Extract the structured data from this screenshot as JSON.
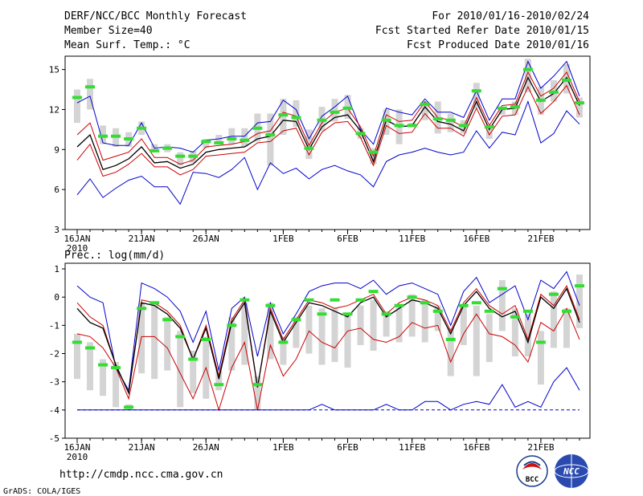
{
  "header": {
    "title": "DERF/NCC/BCC Monthly Forecast",
    "member_size": "Member Size=40",
    "variable": "Mean Surf. Temp.: °C",
    "period": "For 2010/01/16-2010/02/24",
    "fcst_started": "Fcst Started Refer Date 2010/01/15",
    "fcst_produced": "Fcst Produced Date 2010/01/16"
  },
  "footer": {
    "url": "http://cmdp.ncc.cma.gov.cn",
    "credit": "GrADS: COLA/IGES",
    "logo_bcc": "BCC",
    "logo_ncc": "NCC"
  },
  "colors": {
    "bound": "#0000cc",
    "mean": "#000000",
    "spread": "#cc0000",
    "box": "#d4d4d4",
    "obs": "#33dd33"
  },
  "chart_data": [
    {
      "type": "line",
      "title": "Mean Surf. Temp.: °C",
      "ylabel": "°C",
      "ylim": [
        3,
        16
      ],
      "yticks": [
        3,
        6,
        9,
        12,
        15
      ],
      "xticks": [
        {
          "day": 0,
          "label": "16JAN",
          "sublabel": "2010"
        },
        {
          "day": 5,
          "label": "21JAN"
        },
        {
          "day": 10,
          "label": "26JAN"
        },
        {
          "day": 16,
          "label": "1FEB"
        },
        {
          "day": 21,
          "label": "6FEB"
        },
        {
          "day": 26,
          "label": "11FEB"
        },
        {
          "day": 31,
          "label": "16FEB"
        },
        {
          "day": 36,
          "label": "21FEB"
        }
      ],
      "days": [
        0,
        1,
        2,
        3,
        4,
        5,
        6,
        7,
        8,
        9,
        10,
        11,
        12,
        13,
        14,
        15,
        16,
        17,
        18,
        19,
        20,
        21,
        22,
        23,
        24,
        25,
        26,
        27,
        28,
        29,
        30,
        31,
        32,
        33,
        34,
        35,
        36,
        37,
        38,
        39
      ],
      "series": [
        {
          "name": "max",
          "values": [
            12.5,
            13.0,
            9.5,
            9.3,
            9.3,
            11.0,
            9.1,
            9.2,
            9.1,
            8.8,
            9.7,
            9.8,
            10.0,
            10.0,
            11.0,
            11.1,
            12.7,
            12.0,
            9.8,
            11.5,
            12.2,
            13.0,
            10.5,
            9.4,
            12.1,
            11.8,
            11.6,
            12.8,
            11.8,
            11.8,
            11.4,
            13.4,
            11.2,
            12.8,
            12.8,
            15.6,
            13.6,
            14.5,
            15.6,
            13.0
          ]
        },
        {
          "name": "upper",
          "values": [
            10.1,
            11.0,
            8.2,
            8.5,
            8.8,
            9.8,
            8.4,
            8.4,
            7.9,
            8.2,
            9.2,
            9.3,
            9.4,
            9.6,
            10.2,
            10.4,
            11.8,
            11.5,
            9.3,
            11.0,
            11.8,
            12.1,
            10.7,
            8.5,
            11.6,
            11.1,
            11.2,
            12.6,
            11.4,
            11.2,
            10.7,
            12.9,
            10.8,
            12.3,
            12.4,
            14.8,
            13.0,
            13.6,
            14.8,
            12.6
          ]
        },
        {
          "name": "mean",
          "values": [
            9.2,
            10.1,
            7.5,
            7.8,
            8.3,
            9.2,
            8.0,
            8.1,
            7.6,
            7.9,
            8.8,
            9.0,
            9.1,
            9.2,
            9.8,
            10.0,
            11.2,
            11.1,
            9.0,
            10.7,
            11.4,
            11.6,
            10.4,
            8.1,
            11.2,
            10.7,
            10.8,
            12.2,
            11.1,
            10.9,
            10.4,
            12.6,
            10.5,
            12.0,
            12.1,
            14.4,
            12.6,
            13.2,
            14.4,
            12.3
          ]
        },
        {
          "name": "lower",
          "values": [
            8.2,
            9.4,
            7.0,
            7.3,
            7.9,
            8.7,
            7.7,
            7.7,
            7.1,
            7.5,
            8.5,
            8.6,
            8.7,
            8.8,
            9.5,
            9.6,
            10.4,
            10.6,
            8.6,
            10.3,
            11.0,
            11.1,
            9.9,
            7.8,
            10.8,
            10.2,
            10.3,
            11.7,
            10.6,
            10.6,
            10.0,
            12.1,
            10.1,
            11.5,
            11.6,
            13.7,
            11.7,
            12.6,
            13.8,
            11.6
          ]
        },
        {
          "name": "min",
          "values": [
            5.6,
            6.8,
            5.4,
            6.1,
            6.7,
            7.0,
            6.2,
            6.2,
            4.9,
            7.3,
            7.2,
            6.9,
            7.5,
            8.4,
            6.0,
            8.0,
            7.2,
            7.6,
            6.8,
            7.5,
            7.8,
            7.4,
            7.1,
            6.2,
            8.1,
            8.6,
            8.8,
            9.1,
            8.8,
            8.6,
            8.8,
            10.4,
            9.1,
            10.3,
            10.1,
            12.6,
            9.5,
            10.2,
            11.9,
            10.9
          ]
        }
      ],
      "boxes": [
        [
          11,
          13.5
        ],
        [
          12,
          14.3
        ],
        [
          9.4,
          10.8
        ],
        [
          9.2,
          10.6
        ],
        [
          9.2,
          10.3
        ],
        [
          10.1,
          11.1
        ],
        [
          8.8,
          9.4
        ],
        [
          8.8,
          9.4
        ],
        [
          7.8,
          8.8
        ],
        [
          8,
          8.9
        ],
        [
          9.1,
          9.8
        ],
        [
          9.5,
          10.1
        ],
        [
          9.4,
          10.6
        ],
        [
          9.2,
          10.6
        ],
        [
          9.6,
          11.7
        ],
        [
          7.8,
          11.7
        ],
        [
          10.1,
          12.8
        ],
        [
          10.7,
          12.7
        ],
        [
          8.3,
          10.5
        ],
        [
          10.4,
          12.2
        ],
        [
          11.1,
          12.8
        ],
        [
          11.3,
          13.1
        ],
        [
          9.8,
          10.6
        ],
        [
          7.9,
          9.1
        ],
        [
          10.1,
          12
        ],
        [
          9.4,
          12
        ],
        [
          10.7,
          11
        ],
        [
          11.2,
          12.6
        ],
        [
          10.2,
          12.6
        ],
        [
          10.3,
          11.7
        ],
        [
          10.2,
          11.2
        ],
        [
          12.1,
          14
        ],
        [
          9.8,
          10.8
        ],
        [
          11.6,
          12.2
        ],
        [
          11.6,
          12.6
        ],
        [
          13.3,
          15.8
        ],
        [
          11.6,
          13.7
        ],
        [
          12.6,
          14.2
        ],
        [
          13.2,
          15.4
        ],
        [
          11.4,
          12.9
        ]
      ],
      "observations": [
        12.9,
        13.7,
        10.0,
        10.0,
        9.8,
        10.6,
        8.9,
        9.1,
        8.5,
        8.5,
        9.6,
        9.5,
        9.8,
        9.7,
        10.6,
        10.1,
        11.6,
        11.4,
        9.1,
        11.2,
        11.8,
        12.1,
        10.2,
        8.8,
        11.2,
        10.8,
        10.8,
        12.4,
        11.3,
        11.2,
        10.8,
        13.4,
        10.7,
        12.1,
        12.2,
        15.0,
        12.7,
        13.3,
        14.2,
        12.5
      ]
    },
    {
      "type": "line",
      "title": "Prec.: log(mm/d)",
      "ylabel": "log(mm/d)",
      "ylim": [
        -5,
        1.2
      ],
      "yticks": [
        -5,
        -4,
        -3,
        -2,
        -1,
        0,
        1
      ],
      "xticks": [
        {
          "day": 0,
          "label": "16JAN",
          "sublabel": "2010"
        },
        {
          "day": 5,
          "label": "21JAN"
        },
        {
          "day": 10,
          "label": "26JAN"
        },
        {
          "day": 16,
          "label": "1FEB"
        },
        {
          "day": 21,
          "label": "6FEB"
        },
        {
          "day": 26,
          "label": "11FEB"
        },
        {
          "day": 31,
          "label": "16FEB"
        },
        {
          "day": 36,
          "label": "21FEB"
        }
      ],
      "days": [
        0,
        1,
        2,
        3,
        4,
        5,
        6,
        7,
        8,
        9,
        10,
        11,
        12,
        13,
        14,
        15,
        16,
        17,
        18,
        19,
        20,
        21,
        22,
        23,
        24,
        25,
        26,
        27,
        28,
        29,
        30,
        31,
        32,
        33,
        34,
        35,
        36,
        37,
        38,
        39
      ],
      "series": [
        {
          "name": "max",
          "values": [
            0.4,
            0.0,
            -0.2,
            -2.5,
            -3.3,
            0.5,
            0.3,
            0.0,
            -0.5,
            -1.6,
            -0.5,
            -2.6,
            -0.4,
            0.0,
            -2.1,
            -0.2,
            -1.3,
            -0.6,
            0.2,
            0.4,
            0.5,
            0.5,
            0.3,
            0.6,
            0.1,
            0.4,
            0.5,
            0.3,
            0.1,
            -1.0,
            0.2,
            0.7,
            -0.2,
            0.1,
            0.4,
            -0.8,
            0.6,
            0.3,
            0.9,
            -0.3
          ]
        },
        {
          "name": "upper",
          "values": [
            -0.2,
            -0.7,
            -1.0,
            -2.4,
            -3.4,
            -0.1,
            -0.2,
            -0.5,
            -1.0,
            -2.2,
            -1.0,
            -2.8,
            -0.8,
            -0.1,
            -3.2,
            -0.4,
            -1.5,
            -0.8,
            -0.1,
            -0.2,
            -0.4,
            -0.3,
            -0.1,
            0.1,
            -0.6,
            -0.2,
            0.0,
            -0.1,
            -0.3,
            -1.2,
            -0.2,
            0.3,
            -0.3,
            -0.6,
            -0.3,
            -1.5,
            0.1,
            -0.3,
            0.4,
            -0.8
          ]
        },
        {
          "name": "mean",
          "values": [
            -0.4,
            -0.9,
            -1.1,
            -2.4,
            -3.4,
            -0.2,
            -0.3,
            -0.6,
            -1.1,
            -2.2,
            -1.1,
            -2.9,
            -0.9,
            -0.2,
            -3.2,
            -0.5,
            -1.6,
            -0.9,
            -0.2,
            -0.3,
            -0.5,
            -0.7,
            -0.2,
            0.0,
            -0.7,
            -0.4,
            -0.1,
            -0.2,
            -0.4,
            -1.3,
            -0.3,
            0.2,
            -0.4,
            -0.7,
            -0.5,
            -1.6,
            0.0,
            -0.4,
            0.3,
            -0.9
          ]
        },
        {
          "name": "lower",
          "values": [
            -1.3,
            -1.4,
            -1.8,
            -2.5,
            -3.6,
            -1.4,
            -1.4,
            -1.8,
            -2.7,
            -3.6,
            -2.5,
            -4.0,
            -2.5,
            -1.6,
            -4.0,
            -1.7,
            -2.8,
            -2.2,
            -1.2,
            -1.6,
            -1.8,
            -1.2,
            -1.1,
            -1.5,
            -1.6,
            -1.4,
            -0.9,
            -1.1,
            -1.0,
            -2.3,
            -1.3,
            -0.6,
            -1.3,
            -1.4,
            -1.7,
            -2.3,
            -0.9,
            -1.2,
            -0.4,
            -1.5
          ]
        },
        {
          "name": "min",
          "values": [
            -4.0,
            -4.0,
            -4.0,
            -4.0,
            -4.0,
            -4.0,
            -4.0,
            -4.0,
            -4.0,
            -4.0,
            -4.0,
            -4.0,
            -4.0,
            -4.0,
            -4.0,
            -4.0,
            -4.0,
            -4.0,
            -4.0,
            -3.8,
            -4.0,
            -4.0,
            -4.0,
            -4.0,
            -3.8,
            -4.0,
            -4.0,
            -3.7,
            -3.7,
            -4.0,
            -3.8,
            -3.7,
            -3.8,
            -3.1,
            -3.9,
            -3.7,
            -3.9,
            -3.0,
            -2.5,
            -3.3
          ]
        },
        {
          "name": "baseline",
          "values": [
            -4.0,
            -4.0,
            -4.0,
            -4.0,
            -4.0,
            -4.0,
            -4.0,
            -4.0,
            -4.0,
            -4.0,
            -4.0,
            -4.0,
            -4.0,
            -4.0,
            -4.0,
            -4.0,
            -4.0,
            -4.0,
            -4.0,
            -4.0,
            -4.0,
            -4.0,
            -4.0,
            -4.0,
            -4.0,
            -4.0,
            -4.0,
            -4.0,
            -4.0,
            -4.0,
            -4.0,
            -4.0,
            -4.0,
            -4.0,
            -4.0,
            -4.0,
            -4.0,
            -4.0,
            -4.0,
            -4.0
          ]
        }
      ],
      "boxes": [
        [
          -2.9,
          -1.3
        ],
        [
          -3.3,
          -1.6
        ],
        [
          -3.5,
          -2.2
        ],
        [
          -3.9,
          -2.3
        ],
        [
          -4.0,
          -3.8
        ],
        [
          -2.7,
          -0.2
        ],
        [
          -2.9,
          -0.2
        ],
        [
          -2.6,
          -0.7
        ],
        [
          -3.9,
          -1.2
        ],
        [
          -3.4,
          -1.9
        ],
        [
          -3.6,
          -1.4
        ],
        [
          -3.3,
          -2.6
        ],
        [
          -2.6,
          -0.7
        ],
        [
          -2.4,
          -0.2
        ],
        [
          -4.0,
          -2.8
        ],
        [
          -2.2,
          -0.2
        ],
        [
          -2.4,
          -1.4
        ],
        [
          -1.8,
          -0.7
        ],
        [
          -2.0,
          -0.3
        ],
        [
          -2.4,
          -0.4
        ],
        [
          -2.3,
          -0.4
        ],
        [
          -2.5,
          -0.6
        ],
        [
          -1.7,
          -0.3
        ],
        [
          -1.9,
          -0.1
        ],
        [
          -1.4,
          -0.5
        ],
        [
          -1.6,
          -0.3
        ],
        [
          -1.4,
          0.1
        ],
        [
          -1.6,
          -0.1
        ],
        [
          -1.2,
          -0.3
        ],
        [
          -2.8,
          -1.1
        ],
        [
          -1.7,
          -0.3
        ],
        [
          -2.8,
          -0.3
        ],
        [
          -2.3,
          -0.6
        ],
        [
          -1.2,
          0.6
        ],
        [
          -2.1,
          -0.4
        ],
        [
          -2.1,
          -0.6
        ],
        [
          -3.1,
          -1.2
        ],
        [
          -1.8,
          0.2
        ],
        [
          -1.8,
          -0.4
        ],
        [
          -1.1,
          0.8
        ]
      ],
      "observations": [
        -1.6,
        -1.8,
        -2.4,
        -2.5,
        -3.9,
        -0.4,
        -0.2,
        -0.8,
        -1.4,
        -2.2,
        -1.5,
        -3.1,
        -1.0,
        -0.1,
        -3.1,
        -0.3,
        -1.6,
        -0.8,
        -0.1,
        -0.6,
        -0.1,
        -0.6,
        -0.1,
        0.2,
        -0.6,
        -0.3,
        0.0,
        -0.2,
        -0.5,
        -1.5,
        -0.3,
        -0.2,
        -0.5,
        0.3,
        -0.7,
        -0.5,
        -1.6,
        0.1,
        -0.5,
        0.4
      ]
    }
  ]
}
